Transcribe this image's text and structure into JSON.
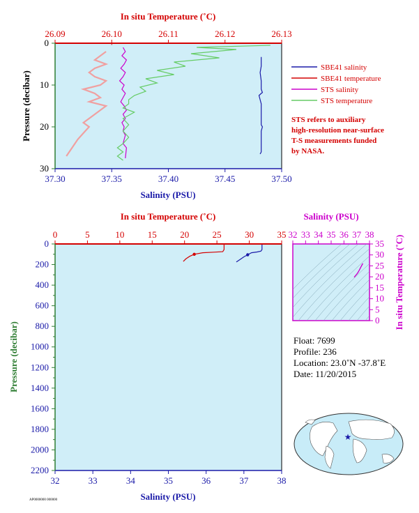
{
  "figure": {
    "top_panel": {
      "temp_axis_title": "In situ Temperature (˚C)",
      "sal_axis_title": "Salinity (PSU)",
      "pressure_axis_title": "Pressure (decibar)"
    },
    "bottom_panel": {
      "temp_axis_title": "In situ Temperature (˚C)",
      "sal_axis_title": "Salinity (PSU)",
      "pressure_axis_title": "Pressure (decibar)"
    },
    "ts_inset": {
      "sal_axis_title": "Salinity (PSU)",
      "temp_axis_title": "In situ Temperature (˚C)"
    },
    "legend": [
      {
        "label": "SBE41 salinity",
        "color": "#1a1aa8"
      },
      {
        "label": "SBE41 temperature",
        "color": "#d40000"
      },
      {
        "label": "STS salinity",
        "color": "#cc00cc"
      },
      {
        "label": "STS temperature",
        "color": "#66cc66"
      }
    ],
    "note_lines": [
      "STS refers to auxiliary",
      "high-resolution near-surface",
      "T-S measurements funded",
      "by NASA."
    ],
    "info": {
      "float": "Float:  7699",
      "profile": "Profile:  236",
      "location": "Location:  23.0˚N  -37.8˚E",
      "date": "Date:  11/20/2015"
    },
    "footer_code": "AP0000000 000000",
    "map": {
      "marker_color": "#1a1aa8"
    }
  },
  "chart_data": [
    {
      "type": "line",
      "panel": "top",
      "ylabel": "Pressure (decibar)",
      "ylim": [
        30,
        0
      ],
      "y_ticks": [
        0,
        10,
        20,
        30
      ],
      "x_temp_label": "In situ Temperature (˚C)",
      "x_temp_lim": [
        26.09,
        26.13
      ],
      "x_temp_ticks": [
        "26.09",
        "26.10",
        "26.11",
        "26.12",
        "26.13"
      ],
      "x_sal_label": "Salinity (PSU)",
      "x_sal_lim": [
        37.3,
        37.5
      ],
      "x_sal_ticks": [
        "37.30",
        "37.35",
        "37.40",
        "37.45",
        "37.50"
      ],
      "series": [
        {
          "name": "SBE41 salinity",
          "axis": "salinity",
          "color": "#1a1aa8",
          "x": [
            37.482,
            37.482,
            37.481,
            37.482,
            37.482,
            37.483,
            37.482,
            37.48,
            37.482,
            37.482,
            37.482,
            37.482,
            37.483,
            37.482,
            37.482,
            37.482,
            37.482,
            37.482,
            37.482,
            37.482,
            37.481
          ],
          "y": [
            3.3,
            5.5,
            7.0,
            9.0,
            11.0,
            11.8,
            12.0,
            12.5,
            14.5,
            16.0,
            18.0,
            19.5,
            20.0,
            21.0,
            22.0,
            23.0,
            24.0,
            25.0,
            25.5,
            26.0,
            26.5
          ]
        },
        {
          "name": "SBE41 temperature",
          "axis": "temperature",
          "color": "#d40000",
          "x": [
            26.1,
            26.1
          ],
          "y": [
            0.2,
            0.4
          ]
        },
        {
          "name": "STS salinity",
          "axis": "salinity",
          "color": "#cc00cc",
          "x": [
            37.36,
            37.362,
            37.359,
            37.363,
            37.361,
            37.358,
            37.362,
            37.36,
            37.357,
            37.361,
            37.359,
            37.362,
            37.36,
            37.358,
            37.361,
            37.363,
            37.36,
            37.362,
            37.359,
            37.361,
            37.36,
            37.362,
            37.361,
            37.36,
            37.363,
            37.362
          ],
          "y": [
            1.0,
            2.0,
            3.0,
            4.0,
            5.0,
            6.0,
            7.0,
            8.0,
            9.0,
            10.0,
            11.0,
            12.0,
            13.0,
            14.0,
            15.0,
            16.0,
            17.0,
            18.0,
            19.0,
            20.0,
            21.0,
            22.0,
            23.0,
            24.0,
            25.0,
            27.5
          ]
        },
        {
          "name": "STS temperature",
          "axis": "temperature",
          "color": "#66cc66",
          "x": [
            26.128,
            26.115,
            26.122,
            26.114,
            26.119,
            26.111,
            26.113,
            26.108,
            26.111,
            26.106,
            26.108,
            26.105,
            26.106,
            26.104,
            26.103,
            26.103,
            26.102,
            26.104,
            26.102,
            26.103,
            26.102,
            26.103,
            26.102,
            26.101,
            26.102,
            26.101,
            26.102
          ],
          "y": [
            0.5,
            1.0,
            1.5,
            2.5,
            3.5,
            4.5,
            5.5,
            6.5,
            7.5,
            8.5,
            9.5,
            10.5,
            11.5,
            12.5,
            13.5,
            14.5,
            15.5,
            16.5,
            18.0,
            19.5,
            21.0,
            22.5,
            24.0,
            25.0,
            26.0,
            27.0,
            28.0
          ]
        },
        {
          "name": "SBE41 temperature (profile)",
          "axis": "temperature",
          "color": "#f0a0a0",
          "x": [
            26.099,
            26.098,
            26.097,
            26.099,
            26.097,
            26.096,
            26.097,
            26.099,
            26.098,
            26.095,
            26.097,
            26.098,
            26.096,
            26.099,
            26.098,
            26.097,
            26.096,
            26.095,
            26.096,
            26.095,
            26.094,
            26.093,
            26.092
          ],
          "y": [
            2.0,
            3.0,
            4.0,
            5.0,
            6.0,
            7.0,
            8.0,
            9.0,
            10.0,
            11.0,
            12.0,
            13.0,
            14.0,
            15.0,
            16.0,
            17.0,
            18.0,
            19.0,
            20.0,
            21.5,
            23.0,
            25.0,
            27.0
          ]
        }
      ]
    },
    {
      "type": "line",
      "panel": "bottom",
      "ylabel": "Pressure (decibar)",
      "ylim": [
        2200,
        0
      ],
      "y_ticks": [
        0,
        200,
        400,
        600,
        800,
        1000,
        1200,
        1400,
        1600,
        1800,
        2000,
        2200
      ],
      "x_temp_label": "In situ Temperature (˚C)",
      "x_temp_lim": [
        0,
        35
      ],
      "x_temp_ticks": [
        0,
        5,
        10,
        15,
        20,
        25,
        30,
        35
      ],
      "x_sal_label": "Salinity (PSU)",
      "x_sal_lim": [
        32,
        38
      ],
      "x_sal_ticks": [
        32,
        33,
        34,
        35,
        36,
        37,
        38
      ],
      "series": [
        {
          "name": "SBE41 temperature",
          "axis": "temperature",
          "color": "#d40000",
          "x": [
            26.1,
            26.1,
            25.9,
            24.5,
            22.8,
            21.5,
            20.8,
            20.2,
            19.8
          ],
          "y": [
            0,
            55,
            75,
            80,
            85,
            100,
            120,
            145,
            170
          ]
        },
        {
          "name": "SBE41 salinity",
          "axis": "salinity",
          "color": "#1a1aa8",
          "x": [
            37.48,
            37.48,
            37.45,
            37.35,
            37.2,
            37.1,
            37.0,
            36.9,
            36.8
          ],
          "y": [
            0,
            55,
            70,
            78,
            85,
            105,
            125,
            150,
            175
          ]
        }
      ]
    },
    {
      "type": "scatter",
      "panel": "ts_inset",
      "xlabel": "Salinity (PSU)",
      "ylabel": "In situ Temperature (˚C)",
      "xlim": [
        32,
        38
      ],
      "ylim": [
        0,
        35
      ],
      "x_ticks": [
        32,
        33,
        34,
        35,
        36,
        37,
        38
      ],
      "y_ticks": [
        0,
        5,
        10,
        15,
        20,
        25,
        30,
        35
      ],
      "series": [
        {
          "name": "T-S",
          "color": "#cc00cc",
          "x": [
            36.8,
            36.9,
            37.0,
            37.1,
            37.2,
            37.3,
            37.45,
            37.48
          ],
          "y": [
            19.8,
            20.5,
            21.2,
            22.0,
            23.0,
            24.2,
            25.8,
            26.1
          ]
        }
      ]
    }
  ]
}
